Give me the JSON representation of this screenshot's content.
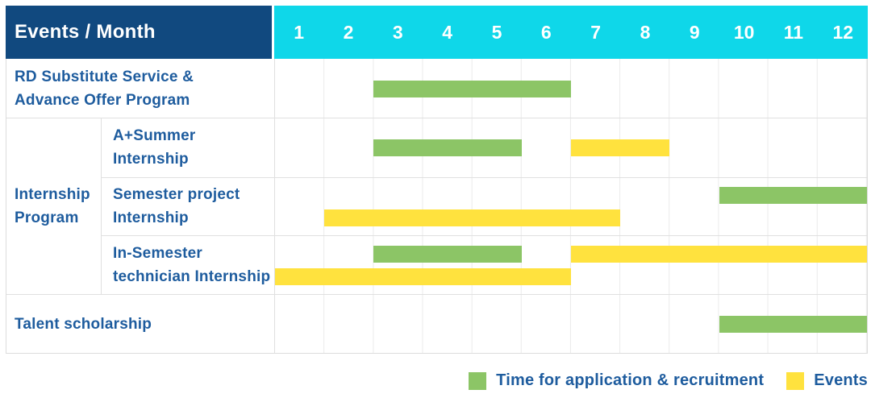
{
  "header": {
    "title": "Events / Month",
    "months": [
      "1",
      "2",
      "3",
      "4",
      "5",
      "6",
      "7",
      "8",
      "9",
      "10",
      "11",
      "12"
    ]
  },
  "colors": {
    "application": "#8CC566",
    "event": "#FFE23E",
    "header_navy": "#11497F",
    "months_cyan": "#0FD7E9",
    "label_blue": "#1E5C9E"
  },
  "legend": {
    "items": [
      {
        "kind": "application",
        "label": "Time for application & recruitment"
      },
      {
        "kind": "event",
        "label": "Events"
      }
    ]
  },
  "chart_data": {
    "type": "gantt",
    "x_unit": "month",
    "x_range": [
      1,
      12
    ],
    "rows": [
      {
        "label": "RD Substitute Service & Advance Offer Program",
        "label_lines": [
          "RD Substitute Service &",
          "Advance Offer Program"
        ],
        "group": "",
        "bars": [
          {
            "kind": "application",
            "start_month": 3,
            "end_month": 6,
            "lane": "center"
          }
        ]
      },
      {
        "label": "A+Summer Internship",
        "label_lines": [
          "A+Summer",
          "Internship"
        ],
        "group": "Internship Program",
        "group_lines": [
          "Internship",
          "Program"
        ],
        "bars": [
          {
            "kind": "application",
            "start_month": 3,
            "end_month": 5,
            "lane": "center"
          },
          {
            "kind": "event",
            "start_month": 7,
            "end_month": 8,
            "lane": "center"
          }
        ]
      },
      {
        "label": "Semester project Internship",
        "label_lines": [
          "Semester project",
          "Internship"
        ],
        "group": "Internship Program",
        "bars": [
          {
            "kind": "application",
            "start_month": 10,
            "end_month": 12,
            "lane": "top"
          },
          {
            "kind": "event",
            "start_month": 2,
            "end_month": 7,
            "lane": "bottom"
          }
        ]
      },
      {
        "label": "In-Semester technician Internship",
        "label_lines": [
          "In-Semester",
          "technician Internship"
        ],
        "group": "Internship Program",
        "bars": [
          {
            "kind": "application",
            "start_month": 3,
            "end_month": 5,
            "lane": "top"
          },
          {
            "kind": "event",
            "start_month": 7,
            "end_month": 12,
            "lane": "top"
          },
          {
            "kind": "event",
            "start_month": 1,
            "end_month": 6,
            "lane": "bottom"
          }
        ]
      },
      {
        "label": "Talent scholarship",
        "label_lines": [
          "Talent scholarship"
        ],
        "group": "",
        "bars": [
          {
            "kind": "application",
            "start_month": 10,
            "end_month": 12,
            "lane": "center"
          }
        ]
      }
    ]
  }
}
